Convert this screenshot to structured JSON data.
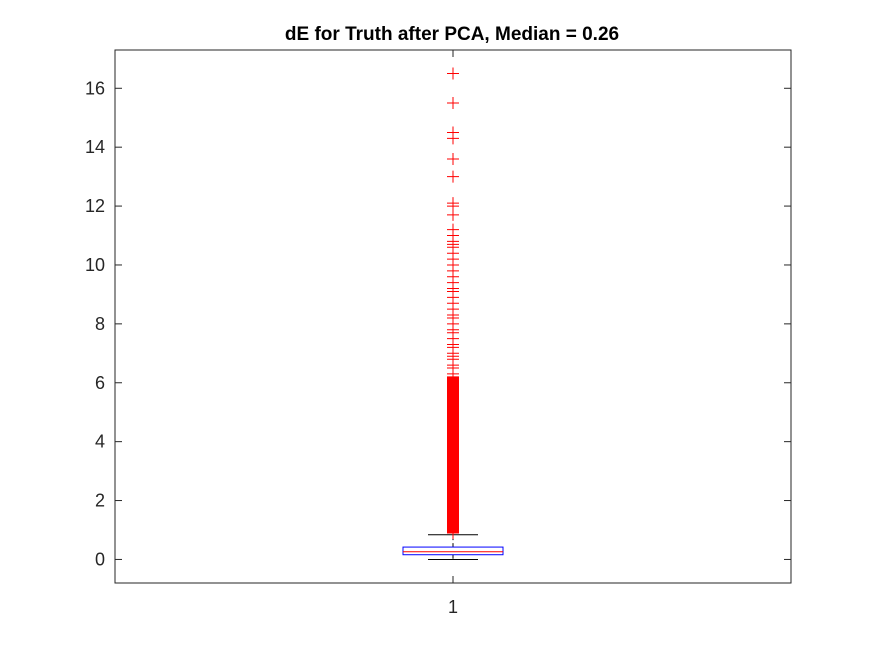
{
  "chart_data": {
    "type": "boxplot",
    "title": "dE for Truth after PCA, Median = 0.26",
    "xlabel": "",
    "ylabel": "",
    "categories": [
      "1"
    ],
    "ylim": [
      -0.8,
      17.3
    ],
    "yticks": [
      0,
      2,
      4,
      6,
      8,
      10,
      12,
      14,
      16
    ],
    "grid": false,
    "box": {
      "median": 0.26,
      "q1": 0.16,
      "q3": 0.42,
      "whisker_low": 0.0,
      "whisker_high": 0.84
    },
    "outliers": [
      0.9,
      1.0,
      1.1,
      1.2,
      1.3,
      1.4,
      1.5,
      1.6,
      1.7,
      1.8,
      1.9,
      2.0,
      2.1,
      2.2,
      2.3,
      2.4,
      2.5,
      2.6,
      2.7,
      2.8,
      2.9,
      3.0,
      3.1,
      3.2,
      3.3,
      3.4,
      3.5,
      3.6,
      3.7,
      3.8,
      3.9,
      4.0,
      4.1,
      4.2,
      4.3,
      4.4,
      4.5,
      4.6,
      4.7,
      4.8,
      4.9,
      5.0,
      5.1,
      5.2,
      5.3,
      5.4,
      5.5,
      5.6,
      5.7,
      5.8,
      5.9,
      6.0,
      6.1,
      6.2,
      6.3,
      6.5,
      6.6,
      6.8,
      6.9,
      7.0,
      7.2,
      7.3,
      7.5,
      7.7,
      7.8,
      8.0,
      8.2,
      8.3,
      8.5,
      8.7,
      8.9,
      9.1,
      9.2,
      9.4,
      9.6,
      9.8,
      10.0,
      10.2,
      10.4,
      10.6,
      10.7,
      10.8,
      11.0,
      11.2,
      11.7,
      12.0,
      12.1,
      13.0,
      13.6,
      14.3,
      14.5,
      15.5,
      16.5
    ],
    "colors": {
      "box": "#0000ff",
      "median": "#ff0000",
      "whisker": "#000000",
      "outlier": "#ff0000",
      "axes": "#262626"
    }
  }
}
